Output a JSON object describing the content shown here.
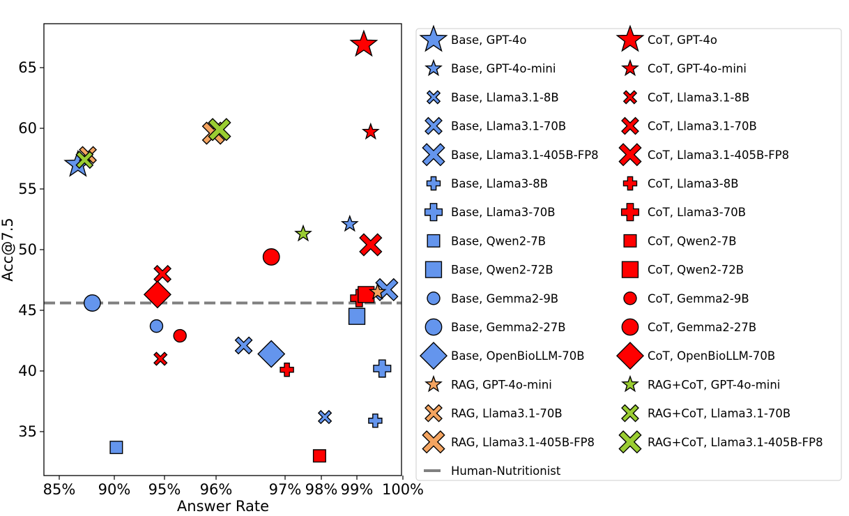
{
  "chart_data": {
    "type": "scatter",
    "title": "",
    "xlabel": "Answer Rate",
    "ylabel": "Acc@7.5",
    "xlim": [
      85,
      100
    ],
    "ylim": [
      31.5,
      68.5
    ],
    "x_ticks": [
      85,
      90,
      95,
      96,
      97,
      98,
      99,
      100
    ],
    "x_tick_labels": [
      "85%",
      "90%",
      "95%",
      "96%",
      "97%",
      "98%",
      "99%",
      "100%"
    ],
    "y_ticks": [
      35,
      40,
      45,
      50,
      55,
      60,
      65
    ],
    "y_tick_labels": [
      "35",
      "40",
      "45",
      "50",
      "55",
      "60",
      "65"
    ],
    "x_axis_note": "non-linear: 85-95% compressed, 95-100% expanded",
    "grid": false,
    "legend_position": "right, outside plot",
    "colors": {
      "Base": "#6495ED",
      "CoT": "#FF0000",
      "RAG": "#F4A460",
      "RAG+CoT": "#9ACD32"
    },
    "reference_line": {
      "name": "Human-Nutritionist",
      "y": 45.6,
      "color": "#808080",
      "style": "dashed"
    },
    "series": [
      {
        "name": "Base, GPT-4o",
        "marker": "star",
        "size": "large",
        "method": "Base",
        "x": 86.7,
        "y": 57.0
      },
      {
        "name": "Base, GPT-4o-mini",
        "marker": "star",
        "size": "small",
        "method": "Base",
        "x": 98.8,
        "y": 52.1
      },
      {
        "name": "Base, Llama3.1-8B",
        "marker": "x",
        "size": "small",
        "method": "Base",
        "x": 98.1,
        "y": 36.2
      },
      {
        "name": "Base, Llama3.1-70B",
        "marker": "x",
        "size": "medium",
        "method": "Base",
        "x": 96.4,
        "y": 42.1
      },
      {
        "name": "Base, Llama3.1-405B-FP8",
        "marker": "x",
        "size": "large",
        "method": "Base",
        "x": 99.65,
        "y": 46.7
      },
      {
        "name": "Base, Llama3-8B",
        "marker": "plus",
        "size": "small",
        "method": "Base",
        "x": 99.4,
        "y": 35.9
      },
      {
        "name": "Base, Llama3-70B",
        "marker": "plus",
        "size": "medium",
        "method": "Base",
        "x": 99.55,
        "y": 40.2
      },
      {
        "name": "Base, Qwen2-7B",
        "marker": "square",
        "size": "small",
        "method": "Base",
        "x": 90.2,
        "y": 33.7
      },
      {
        "name": "Base, Qwen2-72B",
        "marker": "square",
        "size": "medium",
        "method": "Base",
        "x": 99.0,
        "y": 44.5
      },
      {
        "name": "Base, Gemma2-9B",
        "marker": "circle",
        "size": "small",
        "method": "Base",
        "x": 94.2,
        "y": 43.7
      },
      {
        "name": "Base, Gemma2-27B",
        "marker": "circle",
        "size": "medium",
        "method": "Base",
        "x": 88.0,
        "y": 45.6
      },
      {
        "name": "Base, OpenBioLLM-70B",
        "marker": "diamond",
        "size": "large",
        "method": "Base",
        "x": 96.8,
        "y": 41.4
      },
      {
        "name": "CoT, GPT-4o",
        "marker": "star",
        "size": "large",
        "method": "CoT",
        "x": 99.15,
        "y": 66.9
      },
      {
        "name": "CoT, GPT-4o-mini",
        "marker": "star",
        "size": "small",
        "method": "CoT",
        "x": 99.3,
        "y": 59.7
      },
      {
        "name": "CoT, Llama3.1-8B",
        "marker": "x",
        "size": "small",
        "method": "CoT",
        "x": 94.6,
        "y": 41.0
      },
      {
        "name": "CoT, Llama3.1-70B",
        "marker": "x",
        "size": "medium",
        "method": "CoT",
        "x": 94.8,
        "y": 48.0
      },
      {
        "name": "CoT, Llama3.1-405B-FP8",
        "marker": "x",
        "size": "large",
        "method": "CoT",
        "x": 99.3,
        "y": 50.4
      },
      {
        "name": "CoT, Llama3-8B",
        "marker": "plus",
        "size": "small",
        "method": "CoT",
        "x": 97.05,
        "y": 40.1
      },
      {
        "name": "CoT, Llama3-70B",
        "marker": "plus",
        "size": "medium",
        "method": "CoT",
        "x": 99.05,
        "y": 46.0
      },
      {
        "name": "CoT, Qwen2-7B",
        "marker": "square",
        "size": "small",
        "method": "CoT",
        "x": 97.95,
        "y": 33.0
      },
      {
        "name": "CoT, Qwen2-72B",
        "marker": "square",
        "size": "medium",
        "method": "CoT",
        "x": 99.2,
        "y": 46.3
      },
      {
        "name": "CoT, Gemma2-9B",
        "marker": "circle",
        "size": "small",
        "method": "CoT",
        "x": 95.3,
        "y": 42.9
      },
      {
        "name": "CoT, Gemma2-27B",
        "marker": "circle",
        "size": "medium",
        "method": "CoT",
        "x": 96.8,
        "y": 49.4
      },
      {
        "name": "CoT, OpenBioLLM-70B",
        "marker": "diamond",
        "size": "large",
        "method": "CoT",
        "x": 94.3,
        "y": 46.3
      },
      {
        "name": "RAG, GPT-4o-mini",
        "marker": "star",
        "size": "small",
        "method": "RAG",
        "x": 99.45,
        "y": 46.5
      },
      {
        "name": "RAG, Llama3.1-70B",
        "marker": "x",
        "size": "medium",
        "method": "RAG",
        "x": 87.6,
        "y": 57.8
      },
      {
        "name": "RAG, Llama3.1-405B-FP8",
        "marker": "x",
        "size": "large",
        "method": "RAG",
        "x": 95.95,
        "y": 59.6
      },
      {
        "name": "RAG+CoT, GPT-4o-mini",
        "marker": "star",
        "size": "small",
        "method": "RAG+CoT",
        "x": 97.5,
        "y": 51.3
      },
      {
        "name": "RAG+CoT, Llama3.1-70B",
        "marker": "x",
        "size": "medium",
        "method": "RAG+CoT",
        "x": 87.3,
        "y": 57.4
      },
      {
        "name": "RAG+CoT, Llama3.1-405B-FP8",
        "marker": "x",
        "size": "large",
        "method": "RAG+CoT",
        "x": 96.05,
        "y": 59.9
      }
    ],
    "legend": {
      "columns": [
        [
          "Base, GPT-4o",
          "Base, GPT-4o-mini",
          "Base, Llama3.1-8B",
          "Base, Llama3.1-70B",
          "Base, Llama3.1-405B-FP8",
          "Base, Llama3-8B",
          "Base, Llama3-70B",
          "Base, Qwen2-7B",
          "Base, Qwen2-72B",
          "Base, Gemma2-9B",
          "Base, Gemma2-27B",
          "Base, OpenBioLLM-70B",
          "RAG, GPT-4o-mini",
          "RAG, Llama3.1-70B",
          "RAG, Llama3.1-405B-FP8",
          "Human-Nutritionist"
        ],
        [
          "CoT, GPT-4o",
          "CoT, GPT-4o-mini",
          "CoT, Llama3.1-8B",
          "CoT, Llama3.1-70B",
          "CoT, Llama3.1-405B-FP8",
          "CoT, Llama3-8B",
          "CoT, Llama3-70B",
          "CoT, Qwen2-7B",
          "CoT, Qwen2-72B",
          "CoT, Gemma2-9B",
          "CoT, Gemma2-27B",
          "CoT, OpenBioLLM-70B",
          "RAG+CoT, GPT-4o-mini",
          "RAG+CoT, Llama3.1-70B",
          "RAG+CoT, Llama3.1-405B-FP8"
        ]
      ]
    }
  }
}
